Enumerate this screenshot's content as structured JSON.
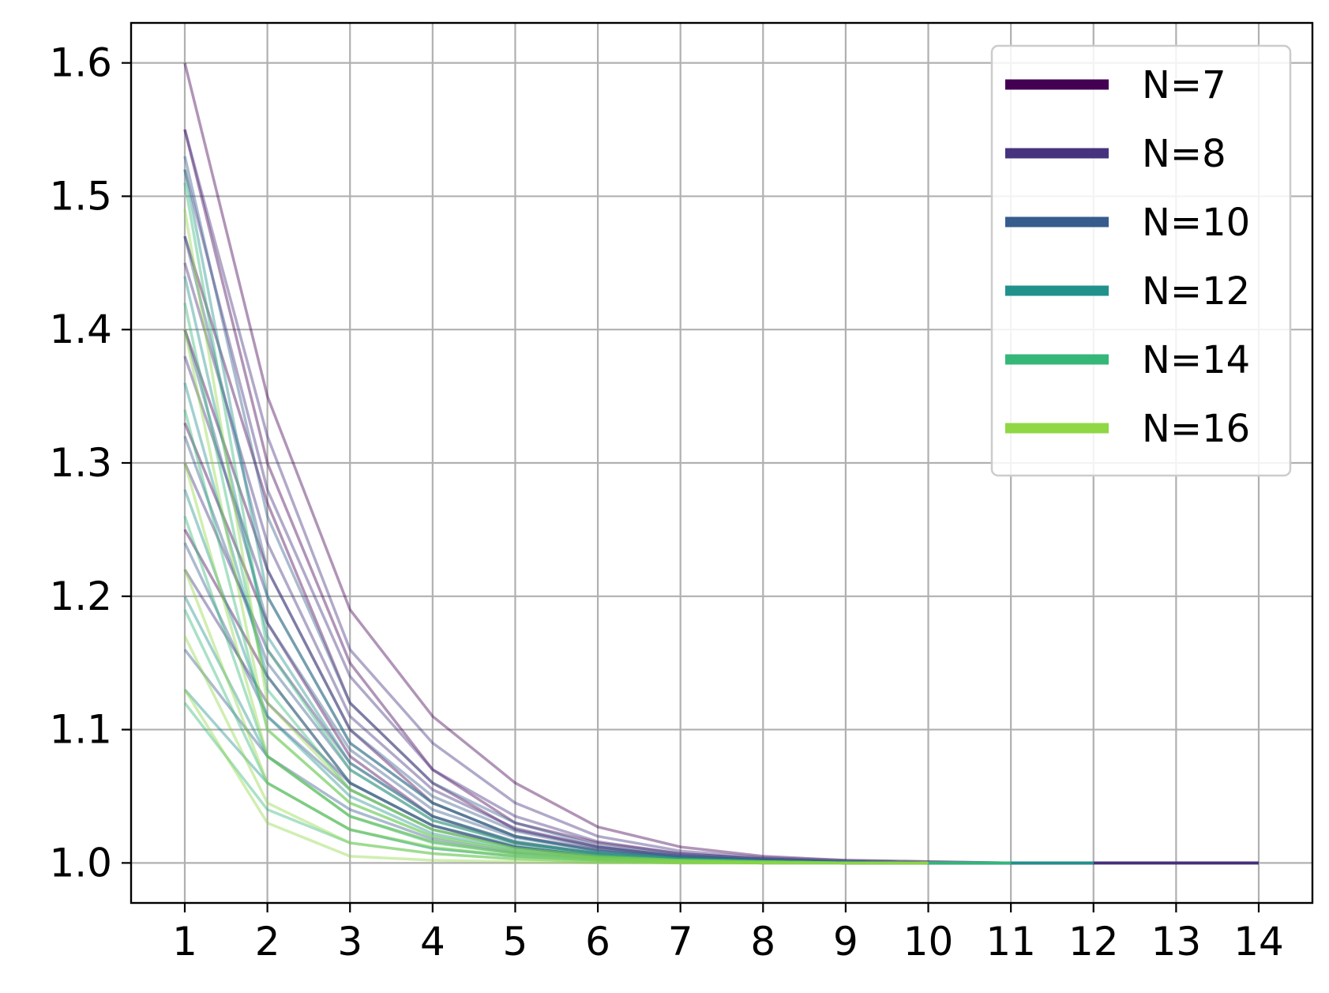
{
  "chart_data": {
    "type": "line",
    "title": "",
    "xlabel": "",
    "ylabel": "",
    "xlim": [
      0.35,
      14.65
    ],
    "ylim": [
      0.97,
      1.63
    ],
    "x_ticks": [
      1,
      2,
      3,
      4,
      5,
      6,
      7,
      8,
      9,
      10,
      11,
      12,
      13,
      14
    ],
    "x_tick_labels": [
      "1",
      "2",
      "3",
      "4",
      "5",
      "6",
      "7",
      "8",
      "9",
      "10",
      "11",
      "12",
      "13",
      "14"
    ],
    "y_ticks": [
      1.0,
      1.1,
      1.2,
      1.3,
      1.4,
      1.5,
      1.6
    ],
    "y_tick_labels": [
      "1.0",
      "1.1",
      "1.2",
      "1.3",
      "1.4",
      "1.5",
      "1.6"
    ],
    "grid": true,
    "legend_position": "top-right",
    "series": [
      {
        "name": "N=7",
        "color": "#440154",
        "x": [
          1,
          2,
          3,
          4,
          5,
          6,
          7,
          8,
          9,
          10,
          11,
          12,
          13,
          14
        ],
        "runs_y": [
          [
            1.6,
            1.35,
            1.19,
            1.11,
            1.06,
            1.027,
            1.012,
            1.005,
            1.002,
            1.001,
            1.0,
            1.0,
            1.0,
            1.0
          ],
          [
            1.55,
            1.3,
            1.15,
            1.07,
            1.03,
            1.015,
            1.007,
            1.003,
            1.001,
            1.0,
            1.0,
            1.0,
            1.0,
            1.0
          ],
          [
            1.47,
            1.27,
            1.12,
            1.06,
            1.025,
            1.012,
            1.005,
            1.002,
            1.001,
            1.0,
            1.0,
            1.0,
            1.0,
            1.0
          ],
          [
            1.4,
            1.22,
            1.1,
            1.045,
            1.02,
            1.01,
            1.004,
            1.002,
            1.001,
            1.0,
            1.0,
            1.0,
            1.0,
            1.0
          ],
          [
            1.33,
            1.18,
            1.08,
            1.035,
            1.015,
            1.007,
            1.003,
            1.001,
            1.0,
            1.0,
            1.0,
            1.0,
            1.0,
            1.0
          ],
          [
            1.25,
            1.14,
            1.06,
            1.028,
            1.012,
            1.005,
            1.002,
            1.001,
            1.0,
            1.0,
            1.0,
            1.0,
            1.0,
            1.0
          ]
        ]
      },
      {
        "name": "N=8",
        "color": "#46337e",
        "x": [
          1,
          2,
          3,
          4,
          5,
          6,
          7,
          8,
          9,
          10,
          11,
          12,
          13,
          14
        ],
        "runs_y": [
          [
            1.55,
            1.32,
            1.16,
            1.09,
            1.045,
            1.02,
            1.009,
            1.004,
            1.002,
            1.001,
            1.0,
            1.0,
            1.0,
            1.0
          ],
          [
            1.52,
            1.28,
            1.14,
            1.07,
            1.035,
            1.016,
            1.007,
            1.003,
            1.001,
            1.0,
            1.0,
            1.0,
            1.0,
            1.0
          ],
          [
            1.45,
            1.24,
            1.11,
            1.055,
            1.026,
            1.012,
            1.005,
            1.002,
            1.001,
            1.0,
            1.0,
            1.0,
            1.0,
            1.0
          ],
          [
            1.38,
            1.2,
            1.09,
            1.045,
            1.02,
            1.009,
            1.004,
            1.002,
            1.001,
            1.0,
            1.0,
            1.0,
            1.0,
            1.0
          ],
          [
            1.3,
            1.16,
            1.075,
            1.035,
            1.016,
            1.007,
            1.003,
            1.001,
            1.0,
            1.0,
            1.0,
            1.0,
            1.0,
            1.0
          ],
          [
            1.22,
            1.12,
            1.06,
            1.028,
            1.012,
            1.005,
            1.002,
            1.001,
            1.0,
            1.0,
            1.0,
            1.0,
            1.0,
            1.0
          ]
        ]
      },
      {
        "name": "N=10",
        "color": "#365c8d",
        "x": [
          1,
          2,
          3,
          4,
          5,
          6,
          7,
          8,
          9,
          10,
          11,
          12
        ],
        "runs_y": [
          [
            1.53,
            1.26,
            1.12,
            1.06,
            1.03,
            1.013,
            1.006,
            1.003,
            1.001,
            1.0,
            1.0,
            1.0
          ],
          [
            1.47,
            1.22,
            1.1,
            1.05,
            1.024,
            1.011,
            1.005,
            1.002,
            1.001,
            1.0,
            1.0,
            1.0
          ],
          [
            1.4,
            1.18,
            1.085,
            1.04,
            1.019,
            1.009,
            1.004,
            1.002,
            1.001,
            1.0,
            1.0,
            1.0
          ],
          [
            1.32,
            1.15,
            1.07,
            1.032,
            1.015,
            1.007,
            1.003,
            1.001,
            1.0,
            1.0,
            1.0,
            1.0
          ],
          [
            1.24,
            1.11,
            1.055,
            1.025,
            1.012,
            1.005,
            1.002,
            1.001,
            1.0,
            1.0,
            1.0,
            1.0
          ],
          [
            1.16,
            1.08,
            1.04,
            1.018,
            1.008,
            1.004,
            1.002,
            1.001,
            1.0,
            1.0,
            1.0,
            1.0
          ]
        ]
      },
      {
        "name": "N=12",
        "color": "#21918c",
        "x": [
          1,
          2,
          3,
          4,
          5,
          6,
          7,
          8,
          9,
          10,
          11,
          12
        ],
        "runs_y": [
          [
            1.52,
            1.2,
            1.09,
            1.045,
            1.02,
            1.009,
            1.004,
            1.002,
            1.001,
            1.0,
            1.0,
            1.0
          ],
          [
            1.44,
            1.17,
            1.075,
            1.035,
            1.016,
            1.007,
            1.003,
            1.001,
            1.0,
            1.0,
            1.0,
            1.0
          ],
          [
            1.36,
            1.14,
            1.06,
            1.028,
            1.013,
            1.006,
            1.003,
            1.001,
            1.0,
            1.0,
            1.0,
            1.0
          ],
          [
            1.28,
            1.11,
            1.05,
            1.022,
            1.01,
            1.005,
            1.002,
            1.001,
            1.0,
            1.0,
            1.0,
            1.0
          ],
          [
            1.2,
            1.08,
            1.035,
            1.016,
            1.007,
            1.003,
            1.001,
            1.0,
            1.0,
            1.0,
            1.0,
            1.0
          ],
          [
            1.13,
            1.06,
            1.025,
            1.011,
            1.005,
            1.002,
            1.001,
            1.0,
            1.0,
            1.0,
            1.0,
            1.0
          ]
        ]
      },
      {
        "name": "N=14",
        "color": "#35b779",
        "x": [
          1,
          2,
          3,
          4,
          5,
          6,
          7,
          8,
          9,
          10,
          11
        ],
        "runs_y": [
          [
            1.51,
            1.16,
            1.07,
            1.032,
            1.015,
            1.007,
            1.003,
            1.001,
            1.0,
            1.0,
            1.0
          ],
          [
            1.42,
            1.13,
            1.055,
            1.025,
            1.011,
            1.005,
            1.002,
            1.001,
            1.0,
            1.0,
            1.0
          ],
          [
            1.34,
            1.1,
            1.045,
            1.02,
            1.009,
            1.004,
            1.002,
            1.001,
            1.0,
            1.0,
            1.0
          ],
          [
            1.26,
            1.08,
            1.035,
            1.015,
            1.007,
            1.003,
            1.001,
            1.0,
            1.0,
            1.0,
            1.0
          ],
          [
            1.19,
            1.06,
            1.025,
            1.011,
            1.005,
            1.002,
            1.001,
            1.0,
            1.0,
            1.0,
            1.0
          ],
          [
            1.12,
            1.04,
            1.015,
            1.007,
            1.003,
            1.001,
            1.0,
            1.0,
            1.0,
            1.0,
            1.0
          ]
        ]
      },
      {
        "name": "N=16",
        "color": "#8fd744",
        "x": [
          1,
          2,
          3,
          4,
          5,
          6,
          7,
          8,
          9,
          10
        ],
        "runs_y": [
          [
            1.49,
            1.12,
            1.055,
            1.025,
            1.011,
            1.005,
            1.002,
            1.001,
            1.0,
            1.0
          ],
          [
            1.4,
            1.1,
            1.045,
            1.02,
            1.009,
            1.004,
            1.002,
            1.001,
            1.0,
            1.0
          ],
          [
            1.3,
            1.08,
            1.035,
            1.016,
            1.007,
            1.003,
            1.001,
            1.0,
            1.0,
            1.0
          ],
          [
            1.22,
            1.06,
            1.025,
            1.012,
            1.005,
            1.002,
            1.001,
            1.0,
            1.0,
            1.0
          ],
          [
            1.17,
            1.045,
            1.015,
            1.007,
            1.003,
            1.001,
            1.0,
            1.0,
            1.0,
            1.0
          ],
          [
            1.13,
            1.03,
            1.005,
            1.002,
            1.001,
            1.0,
            1.0,
            1.0,
            1.0,
            1.0
          ]
        ]
      }
    ]
  }
}
